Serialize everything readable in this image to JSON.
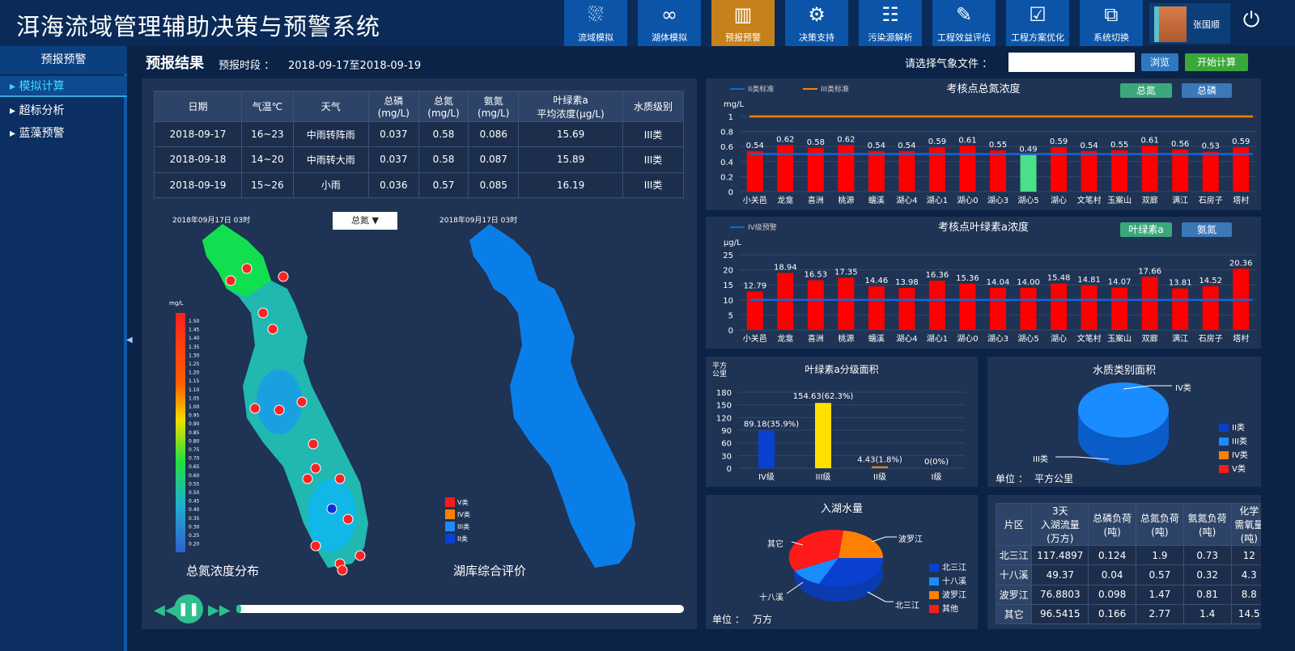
{
  "header": {
    "title": "洱海流域管理辅助决策与预警系统",
    "nav": [
      {
        "label": "流域模拟",
        "icon": "river-icon"
      },
      {
        "label": "湖体模拟",
        "icon": "lake-icon"
      },
      {
        "label": "预报预警",
        "icon": "warning-doc-icon",
        "active": true
      },
      {
        "label": "决策支持",
        "icon": "team-gear-icon"
      },
      {
        "label": "污染源解析",
        "icon": "list-doc-icon"
      },
      {
        "label": "工程效益评估",
        "icon": "edit-icon"
      },
      {
        "label": "工程方案优化",
        "icon": "clipboard-check-icon"
      },
      {
        "label": "系统切换",
        "icon": "switch-icon"
      }
    ],
    "user": "张国顺",
    "accent": "#c5811c"
  },
  "sidebar": {
    "title": "预报预警",
    "items": [
      {
        "label": "模拟计算",
        "active": true
      },
      {
        "label": "超标分析"
      },
      {
        "label": "蓝藻预警"
      }
    ]
  },
  "result": {
    "title": "预报结果",
    "period_label": "预报时段 ：",
    "period": "2018-09-17至2018-09-19",
    "file_label": "请选择气象文件 ：",
    "file_value": "",
    "browse": "浏览",
    "start": "开始计算"
  },
  "forecast_table": {
    "headers": [
      "日期",
      "气温℃",
      "天气",
      "总磷\n(mg/L)",
      "总氮\n(mg/L)",
      "氨氮\n(mg/L)",
      "叶绿素a\n平均浓度(μg/L)",
      "水质级别"
    ],
    "rows": [
      [
        "2018-09-17",
        "16~23",
        "中雨转阵雨",
        "0.037",
        "0.58",
        "0.086",
        "15.69",
        "III类"
      ],
      [
        "2018-09-18",
        "14~20",
        "中雨转大雨",
        "0.037",
        "0.58",
        "0.087",
        "15.89",
        "III类"
      ],
      [
        "2018-09-19",
        "15~26",
        "小雨",
        "0.036",
        "0.57",
        "0.085",
        "16.19",
        "III类"
      ]
    ]
  },
  "maps": {
    "left_time": "2018年09月17日 03时",
    "right_time": "2018年09月17日 03时",
    "select": "总氮",
    "left_caption": "总氮浓度分布",
    "right_caption": "湖库综合评价",
    "unit": "mg/L",
    "scale": [
      "1.50",
      "1.45",
      "1.40",
      "1.35",
      "1.30",
      "1.25",
      "1.20",
      "1.15",
      "1.10",
      "1.05",
      "1.00",
      "0.95",
      "0.90",
      "0.85",
      "0.80",
      "0.75",
      "0.70",
      "0.65",
      "0.60",
      "0.55",
      "0.50",
      "0.45",
      "0.40",
      "0.35",
      "0.30",
      "0.25",
      "0.20"
    ],
    "class_legend": [
      {
        "label": "V类",
        "color": "#ff1a1a"
      },
      {
        "label": "IV类",
        "color": "#ff8000"
      },
      {
        "label": "III类",
        "color": "#1a8cff"
      },
      {
        "label": "II类",
        "color": "#0a40d0"
      }
    ]
  },
  "player": {
    "progress": 0.01
  },
  "tn_chart": {
    "title": "考核点总氮浓度",
    "unit": "mg/L",
    "legend": [
      "II类标准",
      "III类标准"
    ],
    "buttons": [
      "总氮",
      "总磷"
    ],
    "categories": [
      "小关邑",
      "龙龛",
      "喜洲",
      "桃源",
      "蠕溪",
      "湖心4",
      "湖心1",
      "湖心0",
      "湖心3",
      "湖心5",
      "湖心",
      "文笔村",
      "玉案山",
      "双廊",
      "满江",
      "石房子",
      "塔村"
    ],
    "values": [
      0.54,
      0.62,
      0.58,
      0.62,
      0.54,
      0.54,
      0.59,
      0.61,
      0.55,
      0.49,
      0.59,
      0.54,
      0.55,
      0.61,
      0.56,
      0.53,
      0.59
    ],
    "yticks": [
      "0",
      "0.2",
      "0.4",
      "0.6",
      "0.8",
      "1"
    ],
    "ymax": 1.0,
    "lines": [
      0.5,
      1.0
    ],
    "highlight": 9
  },
  "chl_chart": {
    "title": "考核点叶绿素a浓度",
    "unit": "μg/L",
    "legend": [
      "IV级预警"
    ],
    "buttons": [
      "叶绿素a",
      "氨氮"
    ],
    "categories": [
      "小关邑",
      "龙龛",
      "喜洲",
      "桃源",
      "蠕溪",
      "湖心4",
      "湖心1",
      "湖心0",
      "湖心3",
      "湖心5",
      "湖心",
      "文笔村",
      "玉案山",
      "双廊",
      "满江",
      "石房子",
      "塔村"
    ],
    "values": [
      12.79,
      18.94,
      16.53,
      17.35,
      14.46,
      13.98,
      16.36,
      15.36,
      14.04,
      14.0,
      15.48,
      14.81,
      14.07,
      17.66,
      13.81,
      14.52,
      20.36
    ],
    "yticks": [
      "0",
      "5",
      "10",
      "15",
      "20",
      "25"
    ],
    "ymax": 25,
    "lines": [
      10
    ]
  },
  "area_chart": {
    "title": "叶绿素a分级面积",
    "unit": "平方\n公里",
    "categories": [
      "IV级",
      "III级",
      "II级",
      "I级"
    ],
    "values": [
      89.18,
      154.63,
      4.43,
      0
    ],
    "labels": [
      "89.18(35.9%)",
      "154.63(62.3%)",
      "4.43(1.8%)",
      "0(0%)"
    ],
    "colors": [
      "#0a40d0",
      "#ffe000",
      "#ff8000",
      "#1a8cff"
    ],
    "yticks": [
      "0",
      "30",
      "60",
      "90",
      "120",
      "150",
      "180"
    ],
    "ymax": 180
  },
  "class_area": {
    "title": "水质类别面积",
    "unit_label": "单位 ：",
    "unit": "平方公里",
    "slice_labels": [
      "IV类",
      "III类"
    ],
    "legend": [
      {
        "label": "II类",
        "color": "#0a40d0"
      },
      {
        "label": "III类",
        "color": "#1a8cff"
      },
      {
        "label": "IV类",
        "color": "#ff8000"
      },
      {
        "label": "V类",
        "color": "#ff1a1a"
      }
    ]
  },
  "inflow": {
    "title": "入湖水量",
    "unit_label": "单位 ：",
    "unit": "万方",
    "slice_labels": [
      "波罗江",
      "其它",
      "十八溪",
      "北三江"
    ],
    "legend": [
      {
        "label": "北三江",
        "color": "#0a40d0"
      },
      {
        "label": "十八溪",
        "color": "#1a8cff"
      },
      {
        "label": "波罗江",
        "color": "#ff8000"
      },
      {
        "label": "其他",
        "color": "#ff1a1a"
      }
    ],
    "values": [
      117.4897,
      49.37,
      76.8803,
      96.5415
    ]
  },
  "load_table": {
    "headers": [
      "片区",
      "3天\n入湖流量\n(万方)",
      "总磷负荷\n(吨)",
      "总氮负荷\n(吨)",
      "氨氮负荷\n(吨)",
      "化学\n需氧量\n(吨)"
    ],
    "rows": [
      [
        "北三江",
        "117.4897",
        "0.124",
        "1.9",
        "0.73",
        "12"
      ],
      [
        "十八溪",
        "49.37",
        "0.04",
        "0.57",
        "0.32",
        "4.3"
      ],
      [
        "波罗江",
        "76.8803",
        "0.098",
        "1.47",
        "0.81",
        "8.8"
      ],
      [
        "其它",
        "96.5415",
        "0.166",
        "2.77",
        "1.4",
        "14.5"
      ]
    ]
  }
}
